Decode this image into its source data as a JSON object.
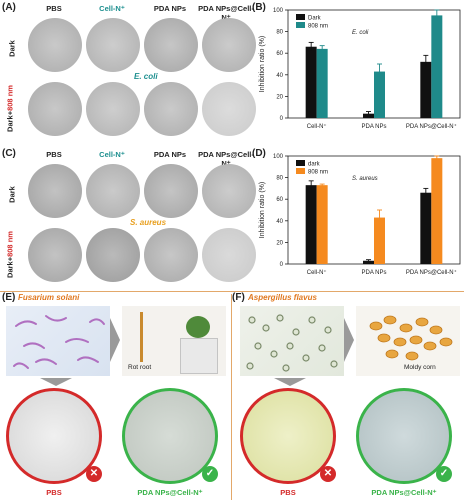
{
  "panels": {
    "A": "(A)",
    "B": "(B)",
    "C": "(C)",
    "D": "(D)",
    "E": "(E)",
    "F": "(F)"
  },
  "plate_columns": [
    "PBS",
    "Cell-N⁺",
    "PDA NPs",
    "PDA NPs@Cell-N⁺"
  ],
  "plate_rows": {
    "dark": "Dark",
    "light_prefix": "Dark+",
    "light_suffix": "808 nm"
  },
  "species_ecoli": "E. coli",
  "species_saureus": "S. aureus",
  "colors": {
    "dark_bar": "#111111",
    "teal": "#1f8a8a",
    "orange": "#f58a1f",
    "red": "#d42a2a",
    "green": "#3ab34a",
    "cell_teal": "#1d8f8f"
  },
  "chart_data": [
    {
      "type": "bar",
      "categories": [
        "Cell-N⁺",
        "PDA NPs",
        "PDA NPs@Cell-N⁺"
      ],
      "series": [
        {
          "name": "Dark",
          "values": [
            66,
            4,
            52
          ],
          "errors": [
            4,
            2,
            6
          ]
        },
        {
          "name": "808 nm",
          "values": [
            64,
            43,
            95
          ],
          "errors": [
            3,
            7,
            5
          ]
        }
      ],
      "ylabel": "Inhibition ratio (%)",
      "ylim": [
        0,
        100
      ],
      "yticks": [
        0,
        20,
        40,
        60,
        80,
        100
      ],
      "annotation": "E. coli",
      "legend": "top-left"
    },
    {
      "type": "bar",
      "categories": [
        "Cell-N⁺",
        "PDA NPs",
        "PDA NPs@Cell-N⁺"
      ],
      "series": [
        {
          "name": "dark",
          "values": [
            73,
            3,
            66
          ],
          "errors": [
            4,
            1,
            4
          ]
        },
        {
          "name": "808 nm",
          "values": [
            73,
            43,
            98
          ],
          "errors": [
            1,
            7,
            2
          ]
        }
      ],
      "ylabel": "Inhibition ratio (%)",
      "ylim": [
        0,
        100
      ],
      "yticks": [
        0,
        20,
        40,
        60,
        80,
        100
      ],
      "annotation": "S. aureus",
      "legend": "top-left"
    }
  ],
  "fungi": {
    "left_title": "Fusarium solani",
    "left_caption": "Rot root",
    "right_title": "Aspergillus flavus",
    "right_caption": "Moldy corn",
    "dish_labels": [
      "PBS",
      "PDA NPs@Cell-N⁺"
    ]
  }
}
